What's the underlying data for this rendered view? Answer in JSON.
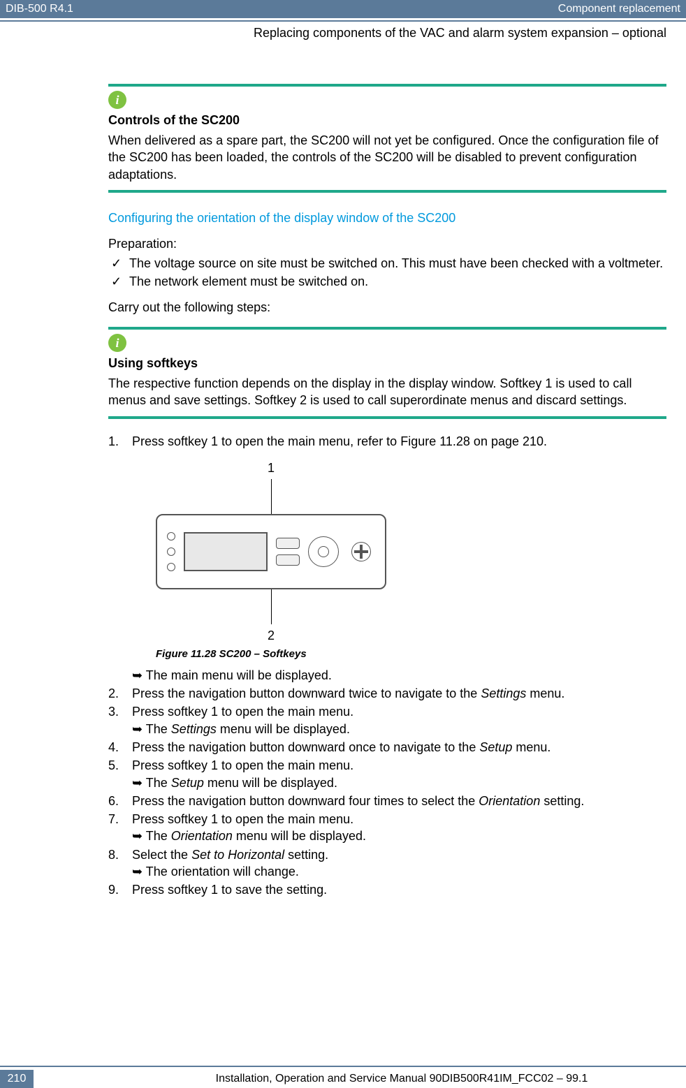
{
  "header": {
    "doc_id": "DIB-500 R4.1",
    "chapter": "Component replacement",
    "subheader": "Replacing components of the VAC and alarm system expansion – optional"
  },
  "info1": {
    "title": "Controls of the SC200",
    "body": "When delivered as a spare part, the SC200 will not yet be configured. Once the configuration file of the SC200 has been loaded, the controls of the SC200 will be disabled to prevent configuration adaptations."
  },
  "section_heading": "Configuring the orientation of the display window of the SC200",
  "prep_label": "Preparation:",
  "prep_items": [
    "The voltage source on site must be switched on. This must have been checked with a voltmeter.",
    "The network element must be switched on."
  ],
  "carry_out": "Carry out the following steps:",
  "info2": {
    "title": "Using softkeys",
    "body": "The respective function depends on the display in the display window. Softkey 1 is used to call menus and save settings. Softkey 2 is used to call superordinate menus and discard settings."
  },
  "figure": {
    "top_num": "1",
    "bottom_num": "2",
    "caption": "Figure 11.28 SC200 – Softkeys"
  },
  "steps": {
    "s1": "Press softkey 1 to open the main menu, refer to Figure 11.28 on page 210.",
    "s1r": "The main menu will be displayed.",
    "s2": "Press the navigation button downward twice to navigate to the ",
    "s2i": "Settings",
    "s2b": " menu.",
    "s3": "Press softkey 1 to open the main menu.",
    "s3r_a": "The ",
    "s3r_i": "Settings",
    "s3r_b": " menu will be displayed.",
    "s4a": "Press the navigation button downward once to navigate to the ",
    "s4i": "Setup",
    "s4b": " menu.",
    "s5": "Press softkey 1 to open the main menu.",
    "s5r_a": "The ",
    "s5r_i": "Setup",
    "s5r_b": " menu will be displayed.",
    "s6a": "Press the navigation button downward four times to select the ",
    "s6i": "Orientation",
    "s6b": " setting.",
    "s7": "Press softkey 1 to open the main menu.",
    "s7r_a": "The ",
    "s7r_i": "Orientation",
    "s7r_b": " menu will be displayed.",
    "s8a": "Select the ",
    "s8i": "Set to Horizontal",
    "s8b": " setting.",
    "s8r": "The orientation will change.",
    "s9": "Press softkey 1 to save the setting."
  },
  "footer": {
    "page": "210",
    "text": "Installation, Operation and Service Manual 90DIB500R41IM_FCC02  –  99.1"
  },
  "colors": {
    "header_bg": "#5b7a99",
    "teal": "#1fa88a",
    "info_icon": "#7fc241",
    "link_blue": "#0099dd"
  }
}
